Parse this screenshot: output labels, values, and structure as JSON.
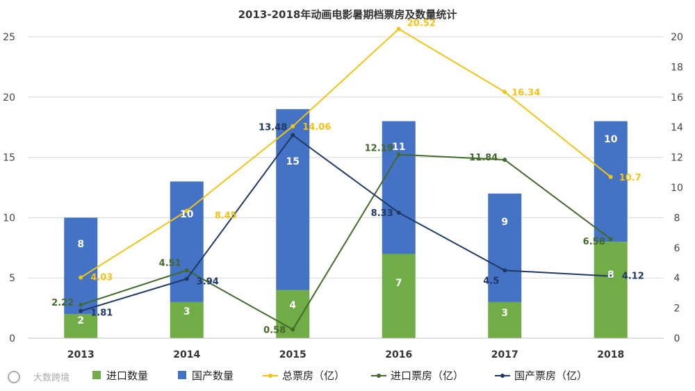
{
  "chart_data": {
    "type": "bar",
    "title": "2013-2018年动画电影暑期档票房及数量统计",
    "categories": [
      "2013",
      "2014",
      "2015",
      "2016",
      "2017",
      "2018"
    ],
    "y_left": {
      "min": 0,
      "max": 25,
      "ticks": [
        "0",
        "5",
        "10",
        "15",
        "20",
        "25"
      ]
    },
    "y_right": {
      "min": 0,
      "max": 20,
      "ticks": [
        "0",
        "2",
        "4",
        "6",
        "8",
        "10",
        "12",
        "14",
        "16",
        "18",
        "20"
      ]
    },
    "bar_series": [
      {
        "name": "进口数量",
        "color": "#70ad47",
        "values": [
          2,
          3,
          4,
          7,
          3,
          8
        ],
        "labels": [
          "2",
          "3",
          "4",
          "7",
          "3",
          "8"
        ]
      },
      {
        "name": "国产数量",
        "color": "#4472c4",
        "values": [
          8,
          10,
          15,
          11,
          9,
          10
        ],
        "labels": [
          "8",
          "10",
          "15",
          "11",
          "9",
          "10"
        ]
      }
    ],
    "line_series": [
      {
        "name": "总票房（亿）",
        "color": "#f2c314",
        "values": [
          4.03,
          8.45,
          14.06,
          20.52,
          16.34,
          10.7
        ],
        "labels": [
          "4.03",
          "8.45",
          "14.06",
          "20.52",
          "16.34",
          "10.7"
        ]
      },
      {
        "name": "进口票房（亿）",
        "color": "#43682b",
        "values": [
          2.22,
          4.51,
          0.58,
          12.19,
          11.84,
          6.58
        ],
        "labels": [
          "2.22",
          "4.51",
          "0.58",
          "12.19",
          "11.84",
          "6.58"
        ]
      },
      {
        "name": "国产票房（亿）",
        "color": "#1f3864",
        "values": [
          1.81,
          3.94,
          13.48,
          8.33,
          4.5,
          4.12
        ],
        "labels": [
          "1.81",
          "3.94",
          "13.48",
          "8.33",
          "4.5",
          "4.12"
        ]
      }
    ],
    "grid": true,
    "legend": "bottom"
  },
  "watermark": {
    "text": "大数跨境"
  }
}
